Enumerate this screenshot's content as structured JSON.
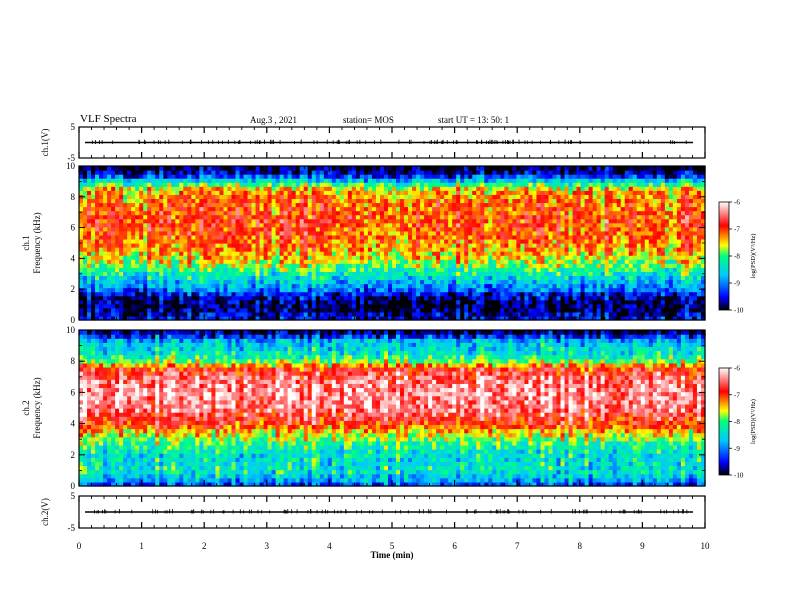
{
  "header": {
    "title": "VLF Spectra",
    "date": "Aug.3  , 2021",
    "station": "station= MOS",
    "start": "start  UT  =   13: 50: 1"
  },
  "chart_data": {
    "type": "heatmap",
    "xlabel": "Time  (min)",
    "xlim": [
      0,
      10
    ],
    "xticks": [
      "0",
      "1",
      "2",
      "3",
      "4",
      "5",
      "6",
      "7",
      "8",
      "9",
      "10"
    ],
    "panels": [
      {
        "id": "ch1-voltage",
        "type": "line",
        "ylabel": "ch.1(V)",
        "ylim": [
          -5,
          5
        ],
        "yticks": [
          "5",
          "-5"
        ],
        "trace_level": 0
      },
      {
        "id": "ch1-spectrogram",
        "type": "heatmap",
        "ylabel_top": "ch.1",
        "ylabel": "Frequency  (kHz)",
        "ylim": [
          0,
          10
        ],
        "yticks": [
          "0",
          "2",
          "4",
          "6",
          "8",
          "10"
        ],
        "intensity_profile": [
          {
            "khz": 0.0,
            "level": -9.4
          },
          {
            "khz": 0.6,
            "level": -9.8
          },
          {
            "khz": 1.0,
            "level": -9.9
          },
          {
            "khz": 1.6,
            "level": -9.6
          },
          {
            "khz": 2.0,
            "level": -9.0
          },
          {
            "khz": 2.6,
            "level": -8.6
          },
          {
            "khz": 3.2,
            "level": -8.1
          },
          {
            "khz": 3.8,
            "level": -7.7
          },
          {
            "khz": 4.5,
            "level": -7.3
          },
          {
            "khz": 5.5,
            "level": -7.1
          },
          {
            "khz": 6.5,
            "level": -7.0
          },
          {
            "khz": 7.5,
            "level": -7.1
          },
          {
            "khz": 8.5,
            "level": -7.4
          },
          {
            "khz": 9.0,
            "level": -8.4
          },
          {
            "khz": 9.5,
            "level": -9.6
          },
          {
            "khz": 10.0,
            "level": -10.0
          }
        ]
      },
      {
        "id": "ch2-spectrogram",
        "type": "heatmap",
        "ylabel_top": "ch.2",
        "ylabel": "Frequency  (kHz)",
        "ylim": [
          0,
          10
        ],
        "yticks": [
          "0",
          "2",
          "4",
          "6",
          "8",
          "10"
        ],
        "intensity_profile": [
          {
            "khz": 0.0,
            "level": -9.3
          },
          {
            "khz": 0.5,
            "level": -8.6
          },
          {
            "khz": 1.0,
            "level": -8.3
          },
          {
            "khz": 2.0,
            "level": -8.4
          },
          {
            "khz": 2.8,
            "level": -8.0
          },
          {
            "khz": 3.4,
            "level": -7.5
          },
          {
            "khz": 4.0,
            "level": -6.9
          },
          {
            "khz": 5.0,
            "level": -6.4
          },
          {
            "khz": 6.0,
            "level": -6.3
          },
          {
            "khz": 7.0,
            "level": -6.5
          },
          {
            "khz": 7.6,
            "level": -6.9
          },
          {
            "khz": 8.0,
            "level": -7.8
          },
          {
            "khz": 8.6,
            "level": -8.4
          },
          {
            "khz": 9.3,
            "level": -8.6
          },
          {
            "khz": 9.7,
            "level": -9.4
          },
          {
            "khz": 10.0,
            "level": -10.0
          }
        ]
      },
      {
        "id": "ch2-voltage",
        "type": "line",
        "ylabel": "ch.2(V)",
        "ylim": [
          -5,
          5
        ],
        "yticks": [
          "5",
          "-5"
        ],
        "trace_level": 0
      }
    ],
    "colorbar": {
      "label": "log(PSD)(V²/Hz)",
      "ticks": [
        "-6",
        "-7",
        "-8",
        "-9",
        "-10"
      ],
      "range": [
        -10,
        -6
      ],
      "colors": [
        "#000000",
        "#0000ff",
        "#00c8ff",
        "#00ff80",
        "#ffff00",
        "#ff0000",
        "#ffffff"
      ]
    }
  }
}
